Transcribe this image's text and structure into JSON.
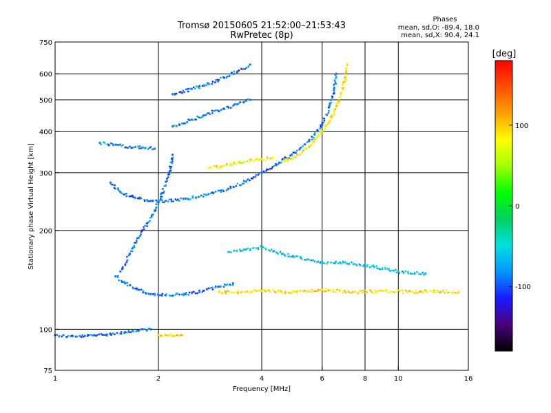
{
  "chart_data": {
    "type": "scatter",
    "title": "Tromsø 20150605 21:52:00–21:53:43",
    "subtitle": "RwPretec (8p)",
    "xlabel": "Frequency [MHz]",
    "ylabel": "Stationary phase Virtual Height [km]",
    "x_scale": "log",
    "y_scale": "log",
    "xlim": [
      1,
      16
    ],
    "ylim": [
      75,
      750
    ],
    "x_ticks": [
      1,
      2,
      4,
      6,
      8,
      10,
      16
    ],
    "x_tick_labels": [
      "1",
      "2",
      "4",
      "6",
      "8",
      "10",
      "16"
    ],
    "y_ticks": [
      75,
      100,
      200,
      300,
      400,
      500,
      600,
      750
    ],
    "y_tick_labels": [
      "75",
      "100",
      "200",
      "300",
      "400",
      "500",
      "600",
      "750"
    ],
    "x_grid": [
      2,
      4,
      6,
      8,
      10
    ],
    "y_grid": [
      100,
      200,
      300,
      400,
      500,
      600
    ],
    "grid": true,
    "phase_info": {
      "heading": "Phases",
      "o_line": "mean, sd,O: -89.4, 18.0",
      "x_line": "mean, sd,X: 90.4, 24.1"
    },
    "colorbar": {
      "label": "[deg]",
      "range": [
        -180,
        180
      ],
      "ticks": [
        100,
        0,
        -100
      ],
      "tick_labels": [
        "100",
        "0",
        "-100"
      ],
      "colormap": [
        "#000000",
        "#4b007a",
        "#1a1aff",
        "#0096ff",
        "#00e0e0",
        "#00d060",
        "#00ff00",
        "#a0ff00",
        "#ffff00",
        "#ffa000",
        "#ff5000",
        "#ff0000"
      ]
    },
    "traces": [
      {
        "name": "",
        "phase": -95,
        "points": [
          [
            1.0,
            96
          ],
          [
            1.15,
            95
          ],
          [
            1.3,
            96
          ],
          [
            1.45,
            97
          ],
          [
            1.6,
            98
          ],
          [
            1.75,
            99
          ],
          [
            1.9,
            100
          ]
        ]
      },
      {
        "name": "",
        "phase": 95,
        "points": [
          [
            2.0,
            96
          ],
          [
            2.1,
            96
          ],
          [
            2.2,
            95.5
          ],
          [
            2.35,
            96
          ]
        ]
      },
      {
        "name": "",
        "phase": -90,
        "points": [
          [
            1.5,
            145
          ],
          [
            1.6,
            138
          ],
          [
            1.75,
            132
          ],
          [
            1.9,
            128
          ],
          [
            2.1,
            127
          ],
          [
            2.4,
            128
          ],
          [
            2.7,
            131
          ],
          [
            3.0,
            135
          ],
          [
            3.3,
            138
          ]
        ]
      },
      {
        "name": "",
        "phase": -90,
        "points": [
          [
            1.45,
            280
          ],
          [
            1.55,
            262
          ],
          [
            1.7,
            252
          ],
          [
            1.9,
            246
          ],
          [
            2.1,
            246
          ],
          [
            2.4,
            250
          ],
          [
            2.8,
            258
          ],
          [
            3.2,
            268
          ],
          [
            3.6,
            282
          ],
          [
            4.0,
            300
          ],
          [
            4.5,
            322
          ],
          [
            5.0,
            345
          ],
          [
            5.5,
            375
          ],
          [
            6.0,
            420
          ],
          [
            6.3,
            480
          ],
          [
            6.5,
            540
          ],
          [
            6.6,
            600
          ]
        ]
      },
      {
        "name": "",
        "phase": 90,
        "points": [
          [
            4.6,
            325
          ],
          [
            5.0,
            335
          ],
          [
            5.4,
            355
          ],
          [
            5.8,
            385
          ],
          [
            6.2,
            420
          ],
          [
            6.5,
            460
          ],
          [
            6.8,
            520
          ],
          [
            7.0,
            580
          ],
          [
            7.1,
            640
          ]
        ]
      },
      {
        "name": "",
        "phase": 85,
        "points": [
          [
            2.8,
            310
          ],
          [
            3.1,
            315
          ],
          [
            3.4,
            322
          ],
          [
            3.7,
            326
          ],
          [
            4.0,
            330
          ],
          [
            4.3,
            333
          ]
        ]
      },
      {
        "name": "",
        "phase": -85,
        "points": [
          [
            1.35,
            370
          ],
          [
            1.5,
            365
          ],
          [
            1.65,
            360
          ],
          [
            1.8,
            358
          ],
          [
            1.95,
            355
          ]
        ]
      },
      {
        "name": "",
        "phase": -90,
        "points": [
          [
            2.2,
            415
          ],
          [
            2.5,
            435
          ],
          [
            2.8,
            455
          ],
          [
            3.1,
            470
          ],
          [
            3.4,
            485
          ],
          [
            3.7,
            500
          ]
        ]
      },
      {
        "name": "",
        "phase": -90,
        "points": [
          [
            2.2,
            520
          ],
          [
            2.5,
            540
          ],
          [
            2.8,
            560
          ],
          [
            3.1,
            585
          ],
          [
            3.4,
            610
          ],
          [
            3.7,
            640
          ]
        ]
      },
      {
        "name": "",
        "phase": -90,
        "points": [
          [
            1.55,
            150
          ],
          [
            1.65,
            170
          ],
          [
            1.75,
            190
          ],
          [
            1.85,
            210
          ],
          [
            1.95,
            230
          ],
          [
            2.05,
            260
          ],
          [
            2.15,
            300
          ],
          [
            2.2,
            340
          ]
        ]
      },
      {
        "name": "",
        "phase": 90,
        "points": [
          [
            3.0,
            130
          ],
          [
            3.5,
            130
          ],
          [
            4.0,
            131
          ],
          [
            5.0,
            130
          ],
          [
            6.0,
            132
          ],
          [
            7.5,
            130
          ],
          [
            9.0,
            131
          ],
          [
            11.0,
            130
          ],
          [
            13.0,
            131
          ],
          [
            15.0,
            130
          ]
        ]
      },
      {
        "name": "",
        "phase": -60,
        "points": [
          [
            3.2,
            172
          ],
          [
            3.6,
            175
          ],
          [
            4.0,
            178
          ],
          [
            4.6,
            170
          ],
          [
            5.2,
            165
          ],
          [
            6.0,
            160
          ],
          [
            7.0,
            160
          ],
          [
            8.5,
            155
          ],
          [
            10.0,
            150
          ],
          [
            12.0,
            148
          ]
        ]
      }
    ]
  }
}
